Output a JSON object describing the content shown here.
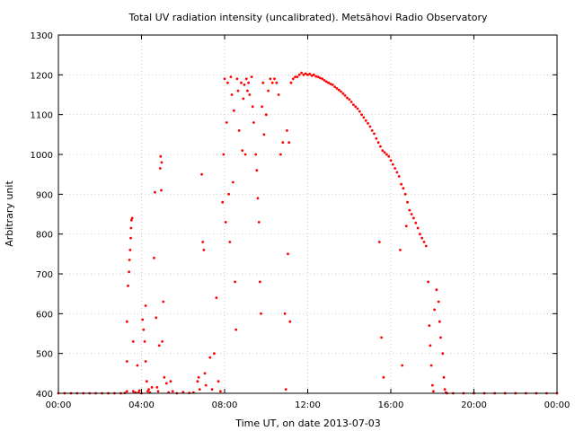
{
  "chart_data": {
    "type": "scatter",
    "title": "Total UV radiation intensity (uncalibrated). Metsähovi Radio Observatory",
    "xlabel": "Time UT, on date 2013-07-03",
    "ylabel": "Arbitrary unit",
    "x_unit": "hours UT",
    "xlim": [
      0,
      24
    ],
    "ylim": [
      400,
      1300
    ],
    "x_ticks": [
      0,
      4,
      8,
      12,
      16,
      20,
      24
    ],
    "x_tick_labels": [
      "00:00",
      "04:00",
      "08:00",
      "12:00",
      "16:00",
      "20:00",
      "00:00"
    ],
    "y_ticks": [
      400,
      500,
      600,
      700,
      800,
      900,
      1000,
      1100,
      1200,
      1300
    ],
    "grid": true,
    "marker_color": "#ff0000",
    "series": [
      {
        "values": [
          [
            0.0,
            400
          ],
          [
            0.3,
            400
          ],
          [
            0.6,
            400
          ],
          [
            0.9,
            400
          ],
          [
            1.2,
            400
          ],
          [
            1.5,
            400
          ],
          [
            1.8,
            400
          ],
          [
            2.1,
            400
          ],
          [
            2.4,
            400
          ],
          [
            2.7,
            400
          ],
          [
            3.0,
            400
          ],
          [
            3.2,
            401
          ],
          [
            3.3,
            405
          ],
          [
            3.3,
            480
          ],
          [
            3.3,
            580
          ],
          [
            3.35,
            670
          ],
          [
            3.4,
            705
          ],
          [
            3.42,
            735
          ],
          [
            3.45,
            760
          ],
          [
            3.48,
            790
          ],
          [
            3.5,
            815
          ],
          [
            3.52,
            835
          ],
          [
            3.55,
            840
          ],
          [
            3.6,
            530
          ],
          [
            3.6,
            405
          ],
          [
            3.7,
            402
          ],
          [
            3.8,
            470
          ],
          [
            3.85,
            402
          ],
          [
            3.9,
            407
          ],
          [
            4.0,
            400
          ],
          [
            4.05,
            585
          ],
          [
            4.1,
            560
          ],
          [
            4.15,
            530
          ],
          [
            4.2,
            620
          ],
          [
            4.2,
            480
          ],
          [
            4.25,
            430
          ],
          [
            4.3,
            405
          ],
          [
            4.35,
            410
          ],
          [
            4.4,
            402
          ],
          [
            4.5,
            415
          ],
          [
            4.6,
            740
          ],
          [
            4.65,
            905
          ],
          [
            4.7,
            590
          ],
          [
            4.75,
            415
          ],
          [
            4.8,
            405
          ],
          [
            4.85,
            520
          ],
          [
            4.9,
            965
          ],
          [
            4.92,
            995
          ],
          [
            4.95,
            910
          ],
          [
            4.97,
            980
          ],
          [
            5.0,
            530
          ],
          [
            5.05,
            630
          ],
          [
            5.1,
            440
          ],
          [
            5.2,
            425
          ],
          [
            5.3,
            402
          ],
          [
            5.4,
            430
          ],
          [
            5.5,
            405
          ],
          [
            5.7,
            400
          ],
          [
            6.0,
            403
          ],
          [
            6.3,
            401
          ],
          [
            6.5,
            402
          ],
          [
            6.7,
            430
          ],
          [
            6.75,
            440
          ],
          [
            6.8,
            410
          ],
          [
            6.9,
            950
          ],
          [
            6.95,
            780
          ],
          [
            7.0,
            760
          ],
          [
            7.05,
            450
          ],
          [
            7.1,
            420
          ],
          [
            7.3,
            490
          ],
          [
            7.4,
            410
          ],
          [
            7.5,
            500
          ],
          [
            7.6,
            640
          ],
          [
            7.7,
            430
          ],
          [
            7.8,
            405
          ],
          [
            7.9,
            880
          ],
          [
            7.95,
            1000
          ],
          [
            8.0,
            1190
          ],
          [
            8.05,
            830
          ],
          [
            8.1,
            1080
          ],
          [
            8.15,
            1180
          ],
          [
            8.2,
            900
          ],
          [
            8.25,
            780
          ],
          [
            8.3,
            1195
          ],
          [
            8.35,
            1150
          ],
          [
            8.4,
            930
          ],
          [
            8.45,
            1110
          ],
          [
            8.5,
            680
          ],
          [
            8.55,
            560
          ],
          [
            8.6,
            1190
          ],
          [
            8.65,
            1160
          ],
          [
            8.7,
            1060
          ],
          [
            8.8,
            1180
          ],
          [
            8.85,
            1010
          ],
          [
            8.9,
            1140
          ],
          [
            8.95,
            1175
          ],
          [
            9.0,
            1000
          ],
          [
            9.05,
            1190
          ],
          [
            9.1,
            1160
          ],
          [
            9.15,
            1180
          ],
          [
            9.2,
            1150
          ],
          [
            9.3,
            1195
          ],
          [
            9.35,
            1120
          ],
          [
            9.4,
            1080
          ],
          [
            9.5,
            1000
          ],
          [
            9.55,
            960
          ],
          [
            9.6,
            890
          ],
          [
            9.65,
            830
          ],
          [
            9.7,
            680
          ],
          [
            9.75,
            600
          ],
          [
            9.8,
            1120
          ],
          [
            9.85,
            1180
          ],
          [
            9.9,
            1050
          ],
          [
            10.0,
            1100
          ],
          [
            10.1,
            1160
          ],
          [
            10.2,
            1190
          ],
          [
            10.3,
            1180
          ],
          [
            10.4,
            1190
          ],
          [
            10.5,
            1180
          ],
          [
            10.6,
            1150
          ],
          [
            10.7,
            1000
          ],
          [
            10.8,
            1030
          ],
          [
            10.9,
            600
          ],
          [
            10.95,
            410
          ],
          [
            11.0,
            1060
          ],
          [
            11.05,
            750
          ],
          [
            11.1,
            1030
          ],
          [
            11.15,
            580
          ],
          [
            11.2,
            1180
          ],
          [
            11.3,
            1190
          ],
          [
            11.4,
            1195
          ],
          [
            11.5,
            1195
          ],
          [
            11.6,
            1200
          ],
          [
            11.7,
            1205
          ],
          [
            11.8,
            1200
          ],
          [
            11.9,
            1203
          ],
          [
            12.0,
            1200
          ],
          [
            12.1,
            1202
          ],
          [
            12.2,
            1198
          ],
          [
            12.3,
            1200
          ],
          [
            12.4,
            1196
          ],
          [
            12.5,
            1195
          ],
          [
            12.6,
            1192
          ],
          [
            12.7,
            1190
          ],
          [
            12.8,
            1186
          ],
          [
            12.9,
            1183
          ],
          [
            13.0,
            1180
          ],
          [
            13.1,
            1177
          ],
          [
            13.2,
            1175
          ],
          [
            13.3,
            1170
          ],
          [
            13.4,
            1166
          ],
          [
            13.5,
            1162
          ],
          [
            13.6,
            1158
          ],
          [
            13.7,
            1153
          ],
          [
            13.8,
            1148
          ],
          [
            13.9,
            1142
          ],
          [
            14.0,
            1138
          ],
          [
            14.1,
            1132
          ],
          [
            14.2,
            1125
          ],
          [
            14.3,
            1120
          ],
          [
            14.4,
            1115
          ],
          [
            14.5,
            1108
          ],
          [
            14.6,
            1100
          ],
          [
            14.7,
            1093
          ],
          [
            14.8,
            1085
          ],
          [
            14.9,
            1078
          ],
          [
            15.0,
            1070
          ],
          [
            15.1,
            1060
          ],
          [
            15.2,
            1052
          ],
          [
            15.3,
            1040
          ],
          [
            15.4,
            1030
          ],
          [
            15.45,
            780
          ],
          [
            15.5,
            1020
          ],
          [
            15.55,
            540
          ],
          [
            15.6,
            1010
          ],
          [
            15.65,
            440
          ],
          [
            15.7,
            1005
          ],
          [
            15.8,
            1000
          ],
          [
            15.9,
            995
          ],
          [
            16.0,
            985
          ],
          [
            16.1,
            975
          ],
          [
            16.2,
            965
          ],
          [
            16.3,
            955
          ],
          [
            16.4,
            945
          ],
          [
            16.45,
            760
          ],
          [
            16.5,
            925
          ],
          [
            16.55,
            470
          ],
          [
            16.6,
            915
          ],
          [
            16.7,
            900
          ],
          [
            16.75,
            820
          ],
          [
            16.8,
            880
          ],
          [
            16.9,
            860
          ],
          [
            17.0,
            850
          ],
          [
            17.1,
            840
          ],
          [
            17.2,
            828
          ],
          [
            17.3,
            815
          ],
          [
            17.4,
            800
          ],
          [
            17.5,
            790
          ],
          [
            17.6,
            780
          ],
          [
            17.7,
            770
          ],
          [
            17.8,
            680
          ],
          [
            17.85,
            570
          ],
          [
            17.9,
            520
          ],
          [
            17.95,
            470
          ],
          [
            18.0,
            420
          ],
          [
            18.05,
            405
          ],
          [
            18.1,
            610
          ],
          [
            18.2,
            660
          ],
          [
            18.3,
            630
          ],
          [
            18.35,
            580
          ],
          [
            18.4,
            540
          ],
          [
            18.5,
            500
          ],
          [
            18.55,
            440
          ],
          [
            18.6,
            410
          ],
          [
            18.65,
            402
          ],
          [
            18.7,
            400
          ],
          [
            19.0,
            400
          ],
          [
            19.5,
            400
          ],
          [
            20.0,
            400
          ],
          [
            20.5,
            400
          ],
          [
            21.0,
            400
          ],
          [
            21.5,
            400
          ],
          [
            22.0,
            400
          ],
          [
            22.5,
            400
          ],
          [
            23.0,
            400
          ],
          [
            23.5,
            400
          ],
          [
            24.0,
            400
          ]
        ]
      }
    ]
  }
}
